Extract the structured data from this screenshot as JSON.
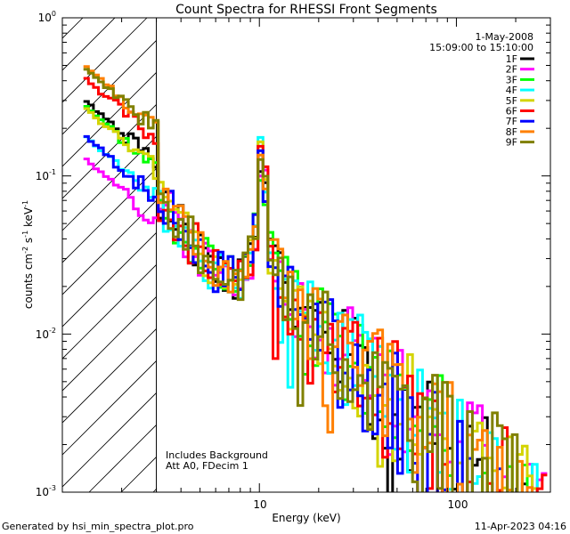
{
  "chart_data": {
    "type": "line",
    "title": "Count Spectra for RHESSI Front Segments",
    "xlabel": "Energy (keV)",
    "ylabel": "counts cm^-2 s^-1 keV^-1",
    "xscale": "log",
    "yscale": "log",
    "xlim": [
      1,
      300
    ],
    "ylim": [
      0.001,
      1
    ],
    "x_tick_labels": [
      {
        "value": 10,
        "label": "10"
      },
      {
        "value": 100,
        "label": "100"
      }
    ],
    "y_tick_labels": [
      {
        "value": 1,
        "base": "10",
        "exp": "0"
      },
      {
        "value": 0.1,
        "base": "10",
        "exp": "-1"
      },
      {
        "value": 0.01,
        "base": "10",
        "exp": "-2"
      },
      {
        "value": 0.001,
        "base": "10",
        "exp": "-3"
      }
    ],
    "date": "1-May-2008",
    "time_range": "15:09:00 to 15:10:00",
    "hatched_region_max_energy": 3,
    "annotations": [
      "Includes Background",
      "Att A0, FDecim 1"
    ],
    "series": [
      {
        "name": "1F",
        "color": "#000000",
        "start": 0.3,
        "seed": 1
      },
      {
        "name": "2F",
        "color": "#ff00ff",
        "start": 0.13,
        "seed": 2
      },
      {
        "name": "3F",
        "color": "#00ff00",
        "start": 0.28,
        "seed": 3
      },
      {
        "name": "4F",
        "color": "#00ffff",
        "start": 0.18,
        "seed": 4
      },
      {
        "name": "5F",
        "color": "#d4d400",
        "start": 0.27,
        "seed": 5
      },
      {
        "name": "6F",
        "color": "#ff0000",
        "start": 0.42,
        "seed": 6
      },
      {
        "name": "7F",
        "color": "#0000ff",
        "start": 0.18,
        "seed": 7
      },
      {
        "name": "8F",
        "color": "#ff8000",
        "start": 0.5,
        "seed": 8
      },
      {
        "name": "9F",
        "color": "#808000",
        "start": 0.48,
        "seed": 9
      }
    ]
  },
  "footer": {
    "generated_by": "Generated by hsi_min_spectra_plot.pro",
    "timestamp": "11-Apr-2023 04:16"
  }
}
